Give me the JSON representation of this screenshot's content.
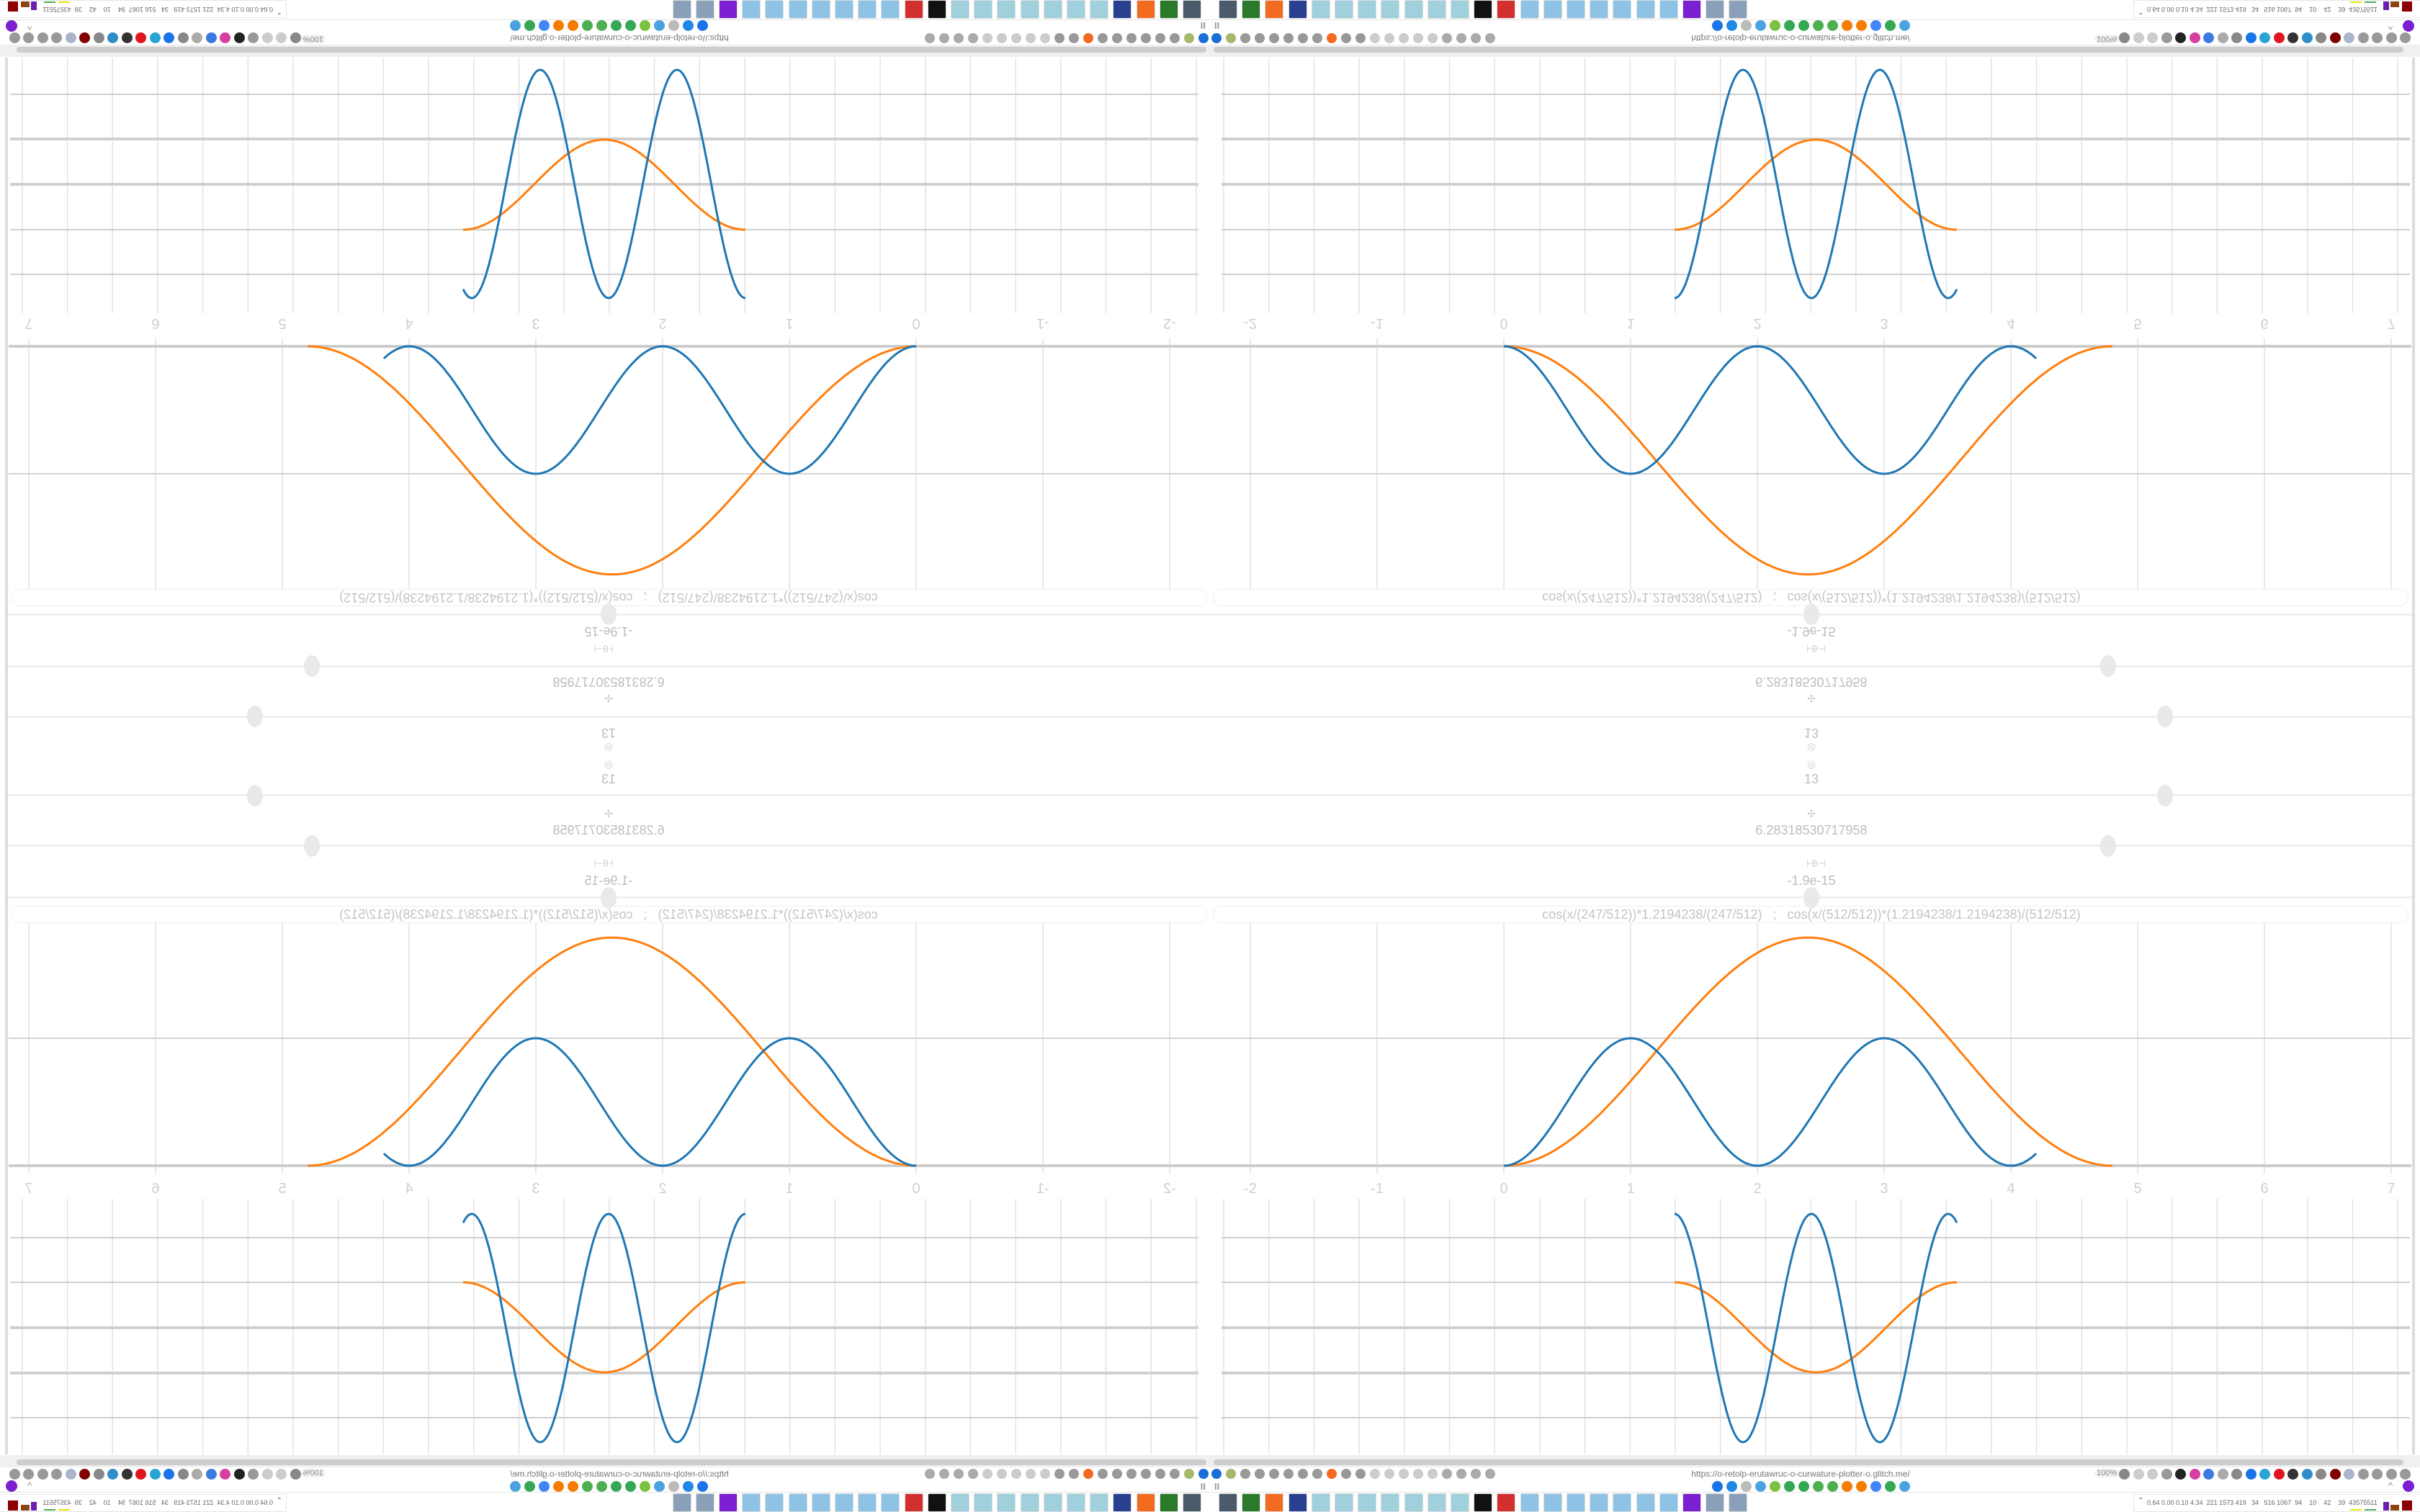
{
  "controls": {
    "steps_value": "13",
    "period_value": "6.28318530717958",
    "offset_value": "-1.9e-15",
    "formula": "cos(x/(247/512))*1.2194238/(247/512)   ;   cos(x/(512/512))*(1.2194238/1.2194238)/(512/512)",
    "slider_levels": {
      "steps": 0.79,
      "period": 0.74,
      "offset": 0.5
    }
  },
  "plot": {
    "x_ticks": [
      "-2",
      "-1",
      "0",
      "1",
      "2",
      "3",
      "4",
      "5",
      "6",
      "7"
    ],
    "series_colors": {
      "curve_a": "#1f77b4",
      "curve_b": "#ff7f0e"
    },
    "grid": true
  },
  "browser": {
    "url": "https://o-retolp-erutawruc-o-curwature-plotter-o.glitch.me/",
    "zoom": "100%",
    "left_icons": [
      {
        "name": "filter",
        "color": "#1a6fd6"
      },
      {
        "name": "power",
        "color": "#a8b86a"
      },
      {
        "name": "globe",
        "color": "#999"
      },
      {
        "name": "globe",
        "color": "#999"
      },
      {
        "name": "headphones",
        "color": "#999"
      },
      {
        "name": "headphones",
        "color": "#999"
      },
      {
        "name": "globe",
        "color": "#999"
      },
      {
        "name": "wrench",
        "color": "#999"
      },
      {
        "name": "firefox",
        "color": "#f26b21"
      },
      {
        "name": "gear",
        "color": "#999"
      },
      {
        "name": "globe",
        "color": "#999"
      },
      {
        "name": "dot",
        "color": "#ccc"
      },
      {
        "name": "circle",
        "color": "#ccc"
      },
      {
        "name": "dot",
        "color": "#ccc"
      },
      {
        "name": "circle",
        "color": "#ccc"
      },
      {
        "name": "dot",
        "color": "#ccc"
      },
      {
        "name": "folder",
        "color": "#aaa"
      },
      {
        "name": "back-arrow",
        "color": "#aaa"
      },
      {
        "name": "shield",
        "color": "#aaa"
      },
      {
        "name": "lock",
        "color": "#aaa"
      }
    ],
    "right_icons": [
      {
        "name": "translate",
        "color": "#888"
      },
      {
        "name": "star",
        "color": "#ccc"
      },
      {
        "name": "forward",
        "color": "#ccc"
      },
      {
        "name": "reload",
        "color": "#999"
      },
      {
        "name": "download",
        "color": "#222"
      },
      {
        "name": "pen",
        "color": "#d63ea0"
      },
      {
        "name": "translate-blue",
        "color": "#3b7be0"
      },
      {
        "name": "mouse",
        "color": "#aaa"
      },
      {
        "name": "gear",
        "color": "#888"
      },
      {
        "name": "plus",
        "color": "#1a73e8"
      },
      {
        "name": "upload",
        "color": "#2aa3d6"
      },
      {
        "name": "record",
        "color": "#e0161e"
      },
      {
        "name": "trash",
        "color": "#333"
      },
      {
        "name": "share",
        "color": "#2f8ec9"
      },
      {
        "name": "book",
        "color": "#888"
      },
      {
        "name": "ublock",
        "color": "#800000"
      },
      {
        "name": "shield",
        "color": "#a9b5c9"
      },
      {
        "name": "globe",
        "color": "#999"
      },
      {
        "name": "puzzle",
        "color": "#999"
      },
      {
        "name": "wrench",
        "color": "#999"
      },
      {
        "name": "gear",
        "color": "#999"
      }
    ],
    "bookmark_icons": [
      {
        "name": "mail",
        "color": "#1a73e8"
      },
      {
        "name": "edge",
        "color": "#1e88e5"
      },
      {
        "name": "compass",
        "color": "#bbb"
      },
      {
        "name": "snowflake",
        "color": "#4aa3df"
      },
      {
        "name": "feather",
        "color": "#7cc242"
      },
      {
        "name": "google",
        "color": "#34a853"
      },
      {
        "name": "google",
        "color": "#34a853"
      },
      {
        "name": "google",
        "color": "#4caf50"
      },
      {
        "name": "google",
        "color": "#4caf50"
      },
      {
        "name": "sun",
        "color": "#f57c00"
      },
      {
        "name": "sun",
        "color": "#f57c00"
      },
      {
        "name": "google",
        "color": "#4285f4"
      },
      {
        "name": "google",
        "color": "#34a853"
      },
      {
        "name": "snowflake",
        "color": "#4aa3df"
      }
    ],
    "pause_label": "II",
    "extension_color": "#7b1fd1"
  },
  "taskbar": {
    "apps": [
      {
        "name": "monitor",
        "color": "#4a5a6a"
      },
      {
        "name": "terminal",
        "color": "#2b7a2b"
      },
      {
        "name": "firefox",
        "color": "#f26b21"
      },
      {
        "name": "floppy",
        "color": "#2a3f8f"
      },
      {
        "name": "notepad",
        "color": "#9fd0dc"
      },
      {
        "name": "notepad",
        "color": "#9fd0dc"
      },
      {
        "name": "notepad",
        "color": "#9fd0dc"
      },
      {
        "name": "notepad",
        "color": "#9fd0dc"
      },
      {
        "name": "notepad",
        "color": "#9fd0dc"
      },
      {
        "name": "notepad",
        "color": "#9fd0dc"
      },
      {
        "name": "notepad",
        "color": "#9fd0dc"
      },
      {
        "name": "inkscape",
        "color": "#111"
      },
      {
        "name": "red-app",
        "color": "#d32f2f"
      },
      {
        "name": "calculator",
        "color": "#8ec3e6"
      },
      {
        "name": "calculator",
        "color": "#8ec3e6"
      },
      {
        "name": "calculator",
        "color": "#8ec3e6"
      },
      {
        "name": "calculator",
        "color": "#8ec3e6"
      },
      {
        "name": "calculator",
        "color": "#8ec3e6"
      },
      {
        "name": "calculator",
        "color": "#8ec3e6"
      },
      {
        "name": "calculator",
        "color": "#8ec3e6"
      },
      {
        "name": "purple-app",
        "color": "#7b1fd1"
      },
      {
        "name": "document",
        "color": "#8aa0b8"
      },
      {
        "name": "document",
        "color": "#8aa0b8"
      }
    ],
    "tray_text": "0.64 0.00 0.10 4.34  221 1573 419   34   516 1067  94    10    42    39  43575511",
    "tray_expand": "^"
  }
}
